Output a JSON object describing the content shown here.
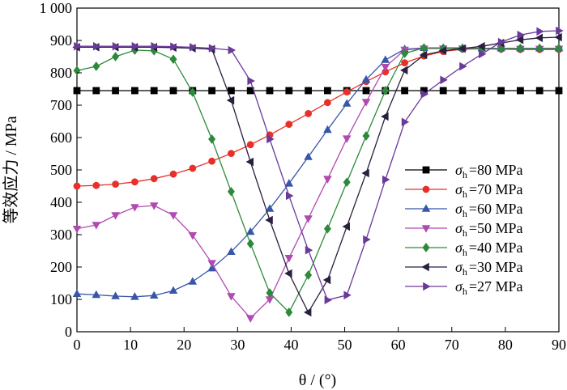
{
  "chart_data": {
    "type": "line",
    "title": "",
    "xlabel": "θ / (°)",
    "ylabel": "等效应力 / MPa",
    "xlim": [
      0,
      90
    ],
    "ylim": [
      0,
      1000
    ],
    "x_ticks": [
      0,
      10,
      20,
      30,
      40,
      50,
      60,
      70,
      80,
      90
    ],
    "y_ticks": [
      0,
      100,
      200,
      300,
      400,
      500,
      600,
      700,
      800,
      900,
      1000
    ],
    "y_tick_labels": [
      "0",
      "100",
      "200",
      "300",
      "400",
      "500",
      "600",
      "700",
      "800",
      "900",
      "1 000"
    ],
    "grid": false,
    "legend_position": "right",
    "x": [
      0,
      3.6,
      7.2,
      10.8,
      14.4,
      18,
      21.6,
      25.2,
      28.8,
      32.4,
      36,
      39.6,
      43.2,
      46.8,
      50.4,
      54,
      57.6,
      61.2,
      64.8,
      68.4,
      72,
      75.6,
      79.2,
      82.8,
      86.4,
      90
    ],
    "series": [
      {
        "name": "80 MPa",
        "legend_symbol": "σ",
        "legend_sub": "h",
        "legend_value": "=80 MPa",
        "color": "#000000",
        "marker": "square",
        "values": [
          745,
          745,
          745,
          745,
          745,
          745,
          745,
          745,
          745,
          745,
          745,
          745,
          745,
          745,
          745,
          745,
          745,
          745,
          745,
          745,
          745,
          745,
          745,
          745,
          745,
          745
        ]
      },
      {
        "name": "70 MPa",
        "legend_symbol": "σ",
        "legend_sub": "h",
        "legend_value": "=70 MPa",
        "color": "#e8302a",
        "marker": "circle",
        "values": [
          450,
          452,
          456,
          463,
          473,
          487,
          505,
          527,
          551,
          578,
          608,
          641,
          674,
          708,
          741,
          773,
          803,
          831,
          852,
          866,
          873,
          874,
          873,
          872,
          872,
          872
        ]
      },
      {
        "name": "60 MPa",
        "legend_symbol": "σ",
        "legend_sub": "h",
        "legend_value": "=60 MPa",
        "color": "#3856a8",
        "marker": "triangle-up",
        "values": [
          117,
          114,
          110,
          108,
          112,
          127,
          155,
          196,
          247,
          309,
          380,
          458,
          540,
          624,
          705,
          779,
          840,
          873,
          877,
          877,
          877,
          876,
          876,
          876,
          876,
          876
        ]
      },
      {
        "name": "50 MPa",
        "legend_symbol": "σ",
        "legend_sub": "h",
        "legend_value": "=50 MPa",
        "color": "#b04ab0",
        "marker": "triangle-down",
        "values": [
          318,
          330,
          360,
          385,
          390,
          360,
          298,
          212,
          110,
          42,
          100,
          228,
          350,
          472,
          597,
          710,
          818,
          871,
          875,
          875,
          875,
          874,
          874,
          874,
          874,
          874
        ]
      },
      {
        "name": "40 MPa",
        "legend_symbol": "σ",
        "legend_sub": "h",
        "legend_value": "=40 MPa",
        "color": "#2c8a3a",
        "marker": "diamond",
        "values": [
          807,
          820,
          850,
          870,
          868,
          842,
          740,
          595,
          433,
          272,
          120,
          60,
          175,
          318,
          462,
          605,
          745,
          860,
          877,
          876,
          876,
          876,
          876,
          876,
          876,
          876
        ]
      },
      {
        "name": "30 MPa",
        "legend_symbol": "σ",
        "legend_sub": "h",
        "legend_value": "=30 MPa",
        "color": "#2a2040",
        "marker": "triangle-left",
        "values": [
          879,
          879,
          879,
          879,
          879,
          878,
          876,
          873,
          715,
          525,
          345,
          180,
          60,
          160,
          325,
          490,
          665,
          808,
          855,
          868,
          875,
          882,
          892,
          902,
          908,
          910
        ]
      },
      {
        "name": "27 MPa",
        "legend_symbol": "σ",
        "legend_sub": "h",
        "legend_value": "=27 MPa",
        "color": "#6a3a9a",
        "marker": "triangle-right",
        "values": [
          882,
          882,
          882,
          882,
          882,
          881,
          879,
          876,
          870,
          775,
          595,
          420,
          252,
          98,
          113,
          285,
          470,
          648,
          734,
          778,
          820,
          858,
          895,
          917,
          928,
          930
        ]
      }
    ]
  }
}
